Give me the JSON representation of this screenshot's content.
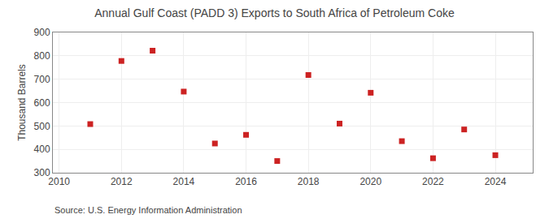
{
  "chart_data": {
    "type": "scatter",
    "title": "Annual Gulf Coast (PADD 3) Exports to South Africa of Petroleum Coke",
    "ylabel": "Thousand Barrels",
    "annotations": [
      "Source: U.S. Energy Information Administration"
    ],
    "x": [
      2011,
      2012,
      2013,
      2014,
      2015,
      2016,
      2017,
      2018,
      2019,
      2020,
      2021,
      2022,
      2023,
      2024
    ],
    "values": [
      508,
      778,
      822,
      647,
      425,
      462,
      350,
      718,
      510,
      642,
      435,
      362,
      485,
      375
    ],
    "color": "#cc2222",
    "marker": "square",
    "xlim": [
      2009.8,
      2025.2
    ],
    "xticks": [
      2010,
      2012,
      2014,
      2016,
      2018,
      2020,
      2022,
      2024
    ],
    "ylim": [
      300,
      900
    ],
    "yticks": [
      300,
      400,
      500,
      600,
      700,
      800,
      900
    ],
    "grid": true
  }
}
